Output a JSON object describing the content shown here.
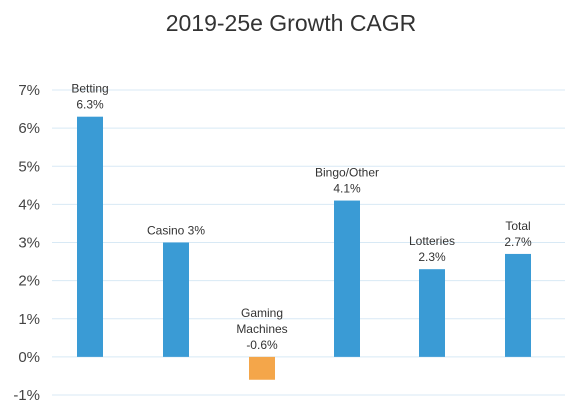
{
  "chart_data": {
    "type": "bar",
    "title": "2019-25e Growth CAGR",
    "xlabel": "",
    "ylabel": "",
    "categories": [
      "Betting",
      "Casino",
      "Gaming Machines",
      "Bingo/Other",
      "Lotteries",
      "Total"
    ],
    "values": [
      6.3,
      3.0,
      -0.6,
      4.1,
      2.3,
      2.7
    ],
    "data_labels": [
      [
        "Betting",
        "6.3%"
      ],
      [
        "Casino 3%"
      ],
      [
        "Gaming",
        "Machines",
        "-0.6%"
      ],
      [
        "Bingo/Other",
        "4.1%"
      ],
      [
        "Lotteries",
        "2.3%"
      ],
      [
        "Total",
        "2.7%"
      ]
    ],
    "ylim": [
      -1,
      7
    ],
    "yticks": [
      "-1%",
      "0%",
      "1%",
      "2%",
      "3%",
      "4%",
      "5%",
      "6%",
      "7%"
    ],
    "grid": true,
    "legend": "none",
    "colors": {
      "positive": "#3A9BD5",
      "negative": "#F4A64A",
      "grid": "#D8E9F5"
    }
  }
}
